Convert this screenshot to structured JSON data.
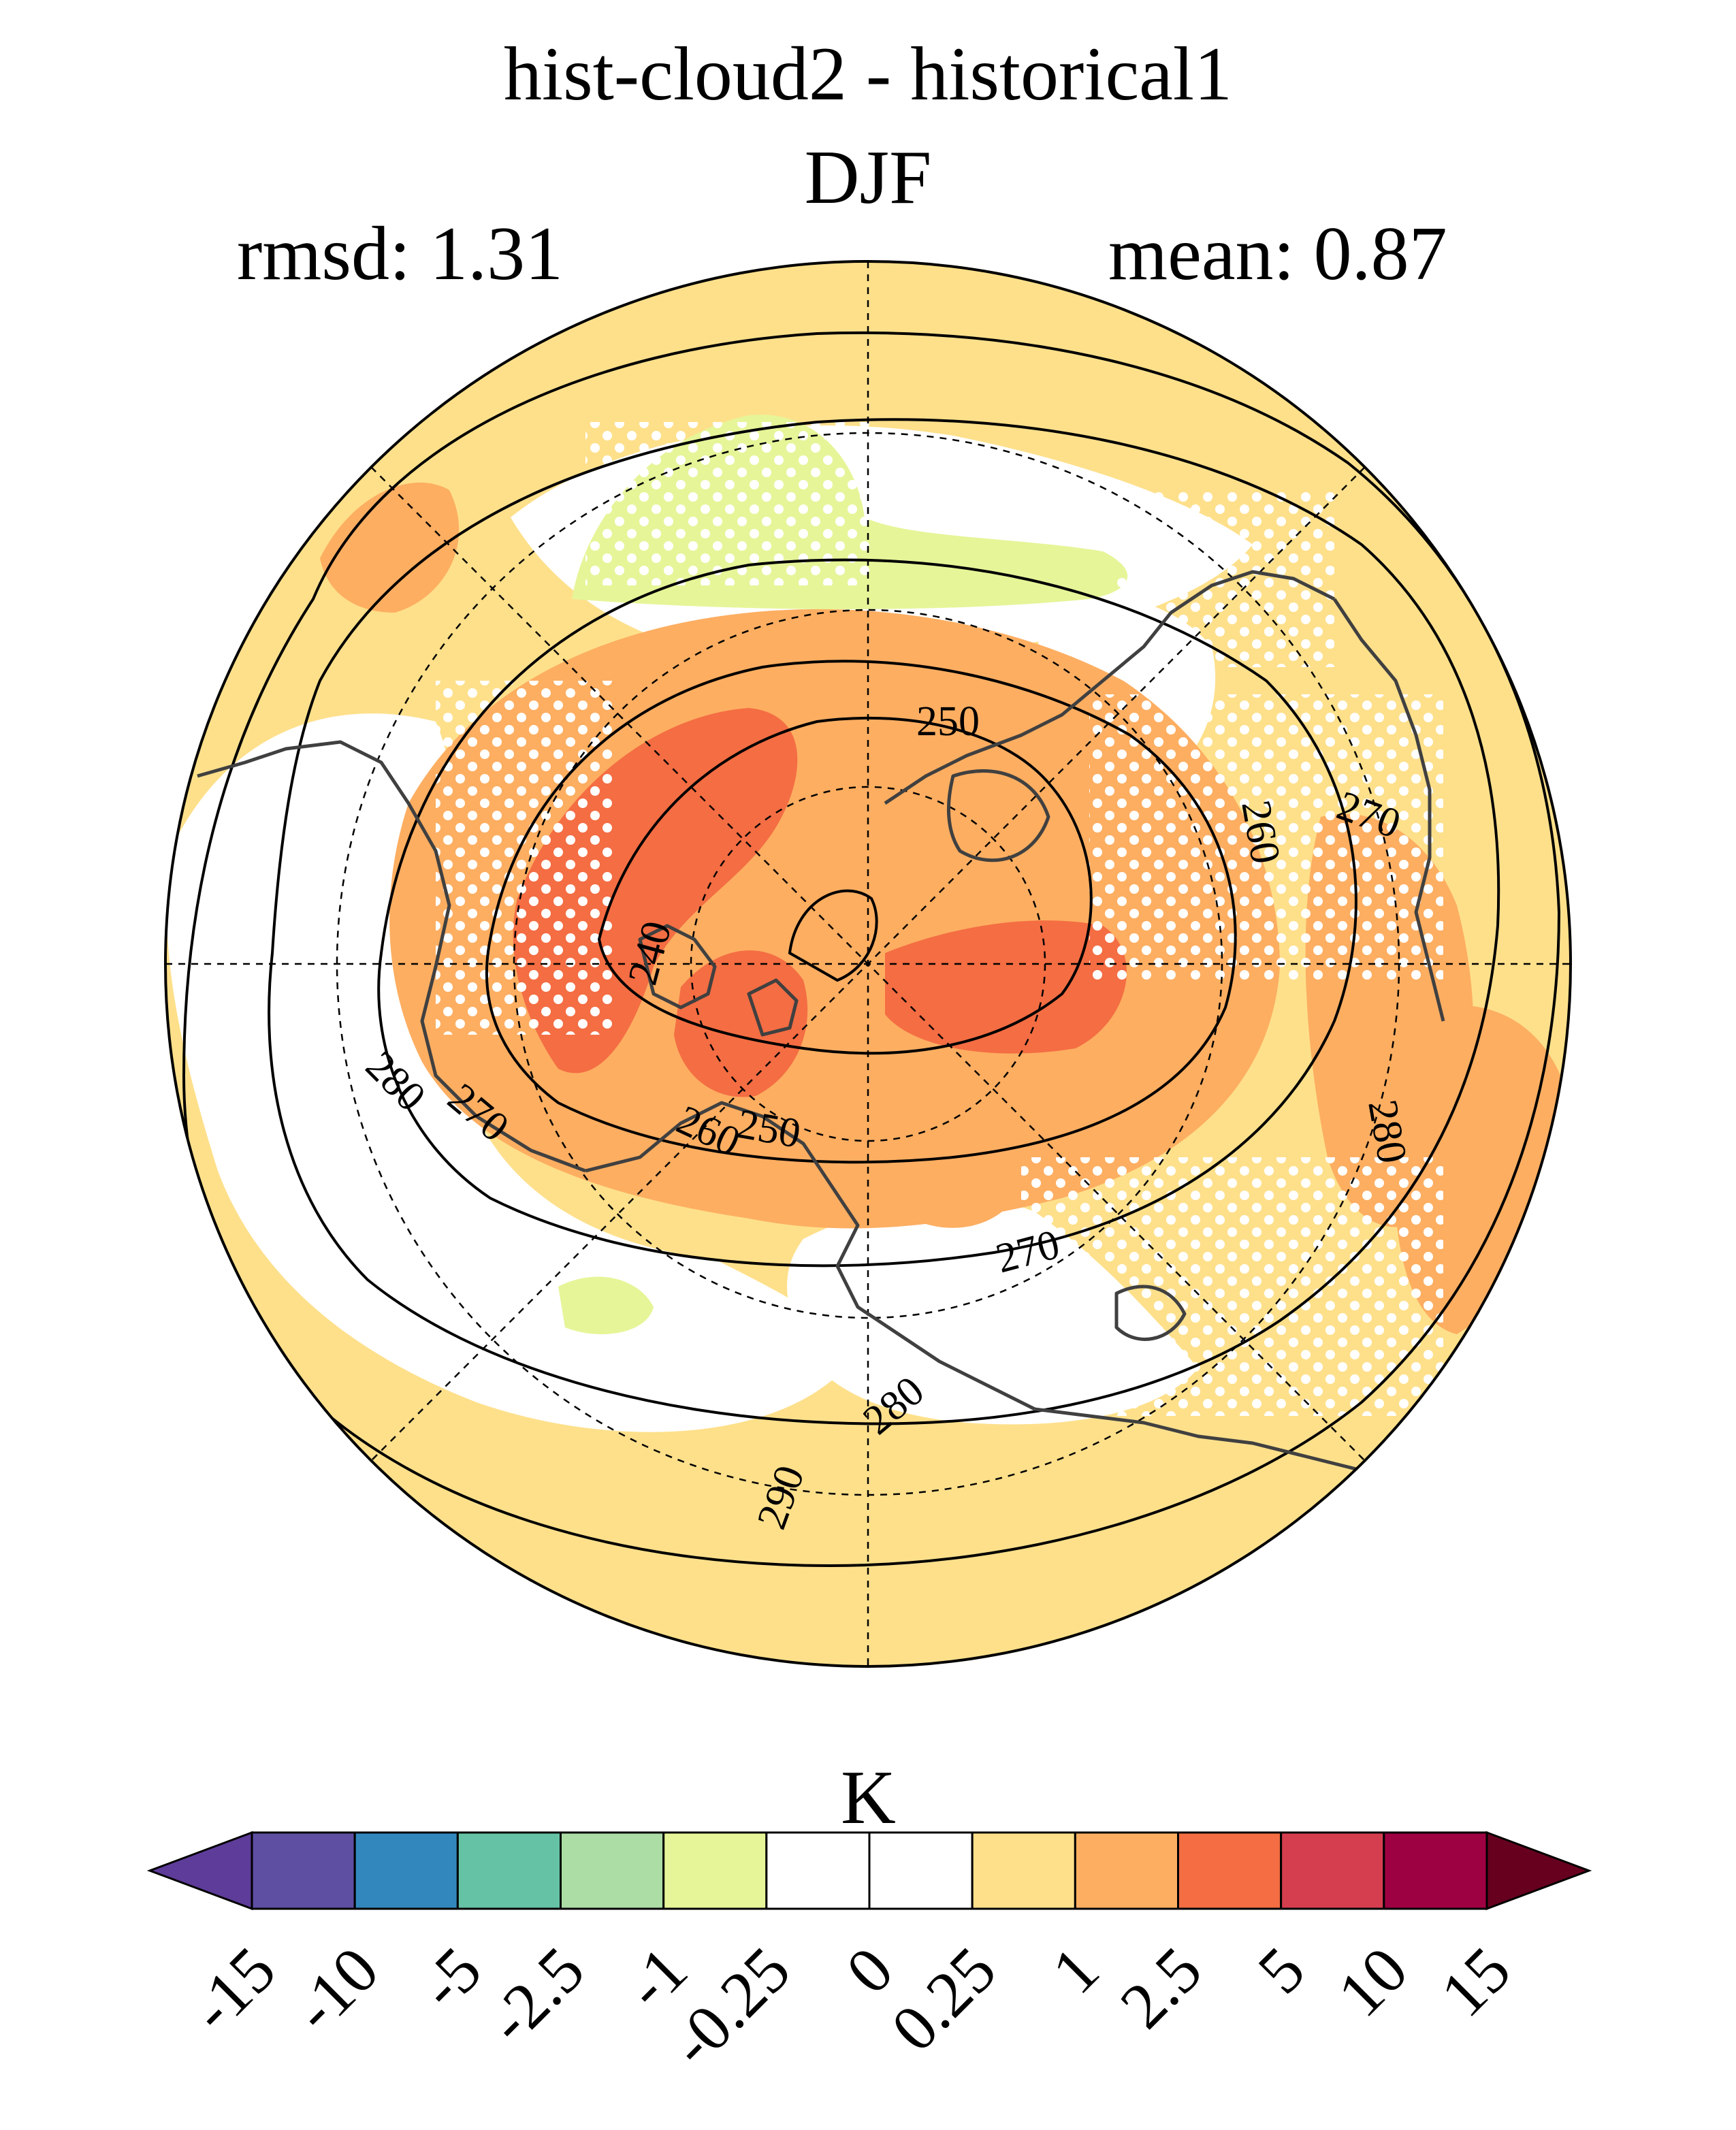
{
  "title": "hist-cloud2 - historical1",
  "subtitle": "DJF",
  "stats": {
    "rmsd_label": "rmsd: 1.31",
    "mean_label": "mean: 0.87"
  },
  "colorbar": {
    "unit": "K",
    "ticks": [
      "-15",
      "-10",
      "-5",
      "-2.5",
      "-1",
      "-0.25",
      "0",
      "0.25",
      "1",
      "2.5",
      "5",
      "10",
      "15"
    ],
    "colors": [
      "#5e3c99",
      "#5e4fa2",
      "#3288bd",
      "#66c2a5",
      "#abdda4",
      "#e6f598",
      "#ffffff",
      "#ffffff",
      "#fee08b",
      "#fdae61",
      "#f46d43",
      "#d53e4f",
      "#9e0142",
      "#67001f"
    ]
  },
  "contour_labels": [
    "250",
    "260",
    "270",
    "240",
    "280",
    "270",
    "260",
    "250",
    "280",
    "270",
    "280",
    "290"
  ],
  "map_colors": {
    "warm_light": "#fee08b",
    "warm_mid": "#fdae61",
    "warm_strong": "#f46d43",
    "cool_light": "#e6f598",
    "cool_mid": "#abdda4",
    "neutral": "#ffffff"
  }
}
